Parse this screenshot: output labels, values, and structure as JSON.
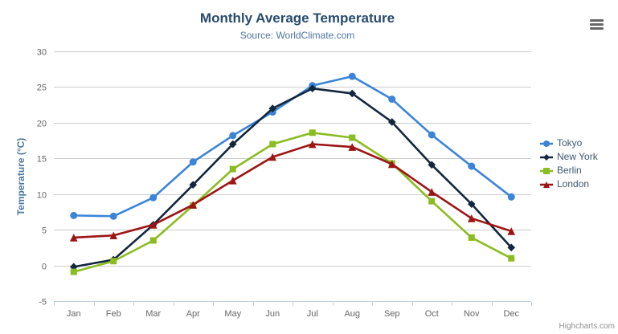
{
  "header": {
    "title": "Monthly Average Temperature",
    "subtitle": "Source: WorldClimate.com"
  },
  "toolbar": {
    "export_menu_icon": "hamburger-icon"
  },
  "credits": {
    "label": "Highcharts.com"
  },
  "chart_data": {
    "type": "line",
    "title": "Monthly Average Temperature",
    "subtitle": "Source: WorldClimate.com",
    "categories": [
      "Jan",
      "Feb",
      "Mar",
      "Apr",
      "May",
      "Jun",
      "Jul",
      "Aug",
      "Sep",
      "Oct",
      "Nov",
      "Dec"
    ],
    "series": [
      {
        "name": "Tokyo",
        "color": "#3b84d8",
        "marker": "circle",
        "values": [
          7.0,
          6.9,
          9.5,
          14.5,
          18.2,
          21.5,
          25.2,
          26.5,
          23.3,
          18.3,
          13.9,
          9.6
        ]
      },
      {
        "name": "New York",
        "color": "#12263e",
        "marker": "diamond",
        "values": [
          -0.2,
          0.8,
          5.7,
          11.3,
          17.0,
          22.0,
          24.8,
          24.1,
          20.1,
          14.1,
          8.6,
          2.5
        ]
      },
      {
        "name": "Berlin",
        "color": "#8bbc21",
        "marker": "square",
        "values": [
          -0.9,
          0.6,
          3.5,
          8.4,
          13.5,
          17.0,
          18.6,
          17.9,
          14.3,
          9.0,
          3.9,
          1.0
        ]
      },
      {
        "name": "London",
        "color": "#9d1414",
        "marker": "triangle",
        "values": [
          3.9,
          4.2,
          5.7,
          8.5,
          11.9,
          15.2,
          17.0,
          16.6,
          14.2,
          10.3,
          6.6,
          4.8
        ]
      }
    ],
    "xlabel": "",
    "ylabel": "Temperature (°C)",
    "ylim": [
      -5,
      30
    ],
    "ytick_step": 5,
    "grid": true,
    "gridline_color": "#cccccc",
    "axis_line_color": "#c0d0e0",
    "tick_label_color": "#666666",
    "legend_position": "right"
  }
}
